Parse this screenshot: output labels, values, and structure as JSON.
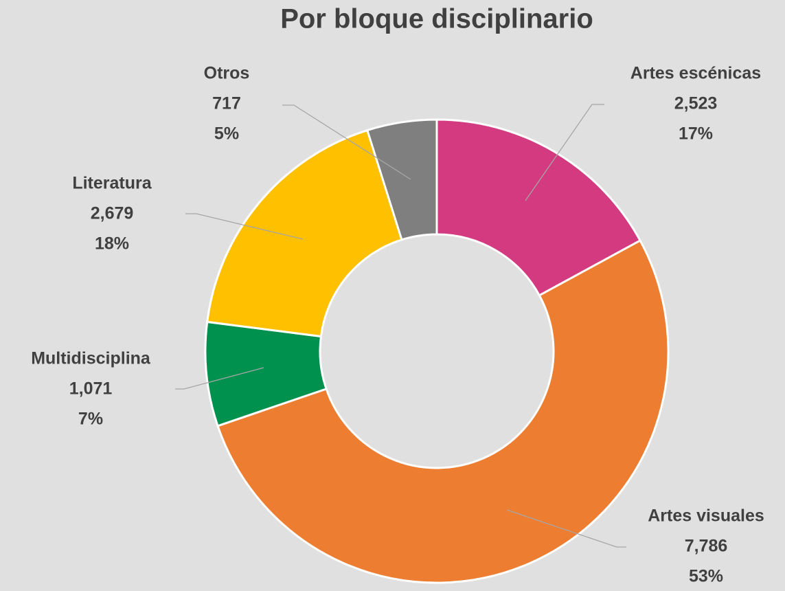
{
  "chart_data": {
    "type": "donut",
    "title": "Por bloque disciplinario",
    "categories": [
      "Artes escénicas",
      "Artes visuales",
      "Multidisciplina",
      "Literatura",
      "Otros"
    ],
    "values": [
      2523,
      7786,
      1071,
      2679,
      717
    ],
    "value_labels": [
      "2,523",
      "7,786",
      "1,071",
      "2,679",
      "717"
    ],
    "percent_labels": [
      "17%",
      "53%",
      "7%",
      "18%",
      "5%"
    ],
    "colors": [
      "#d43a80",
      "#ed7d31",
      "#00914f",
      "#ffc000",
      "#7f7f7f"
    ]
  }
}
